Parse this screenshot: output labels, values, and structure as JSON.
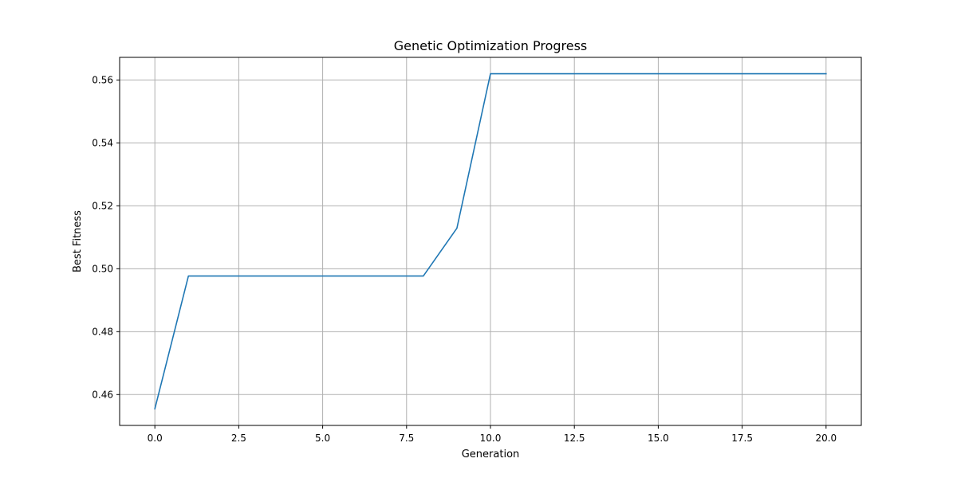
{
  "chart_data": {
    "type": "line",
    "title": "Genetic Optimization Progress",
    "xlabel": "Generation",
    "ylabel": "Best Fitness",
    "xlim": [
      -1.05,
      21.05
    ],
    "ylim": [
      0.4502,
      0.5672
    ],
    "xticks": [
      0.0,
      2.5,
      5.0,
      7.5,
      10.0,
      12.5,
      15.0,
      17.5,
      20.0
    ],
    "xtick_labels": [
      "0.0",
      "2.5",
      "5.0",
      "7.5",
      "10.0",
      "12.5",
      "15.0",
      "17.5",
      "20.0"
    ],
    "yticks": [
      0.46,
      0.48,
      0.5,
      0.52,
      0.54,
      0.56
    ],
    "ytick_labels": [
      "0.46",
      "0.48",
      "0.50",
      "0.52",
      "0.54",
      "0.56"
    ],
    "grid": true,
    "series": [
      {
        "color": "#1f77b4",
        "x": [
          0,
          1,
          2,
          3,
          4,
          5,
          6,
          7,
          8,
          9,
          10,
          11,
          12,
          13,
          14,
          15,
          16,
          17,
          18,
          19,
          20
        ],
        "y": [
          0.4555,
          0.4977,
          0.4977,
          0.4977,
          0.4977,
          0.4977,
          0.4977,
          0.4977,
          0.4977,
          0.5129,
          0.562,
          0.562,
          0.562,
          0.562,
          0.562,
          0.562,
          0.562,
          0.562,
          0.562,
          0.562,
          0.562
        ]
      }
    ]
  }
}
